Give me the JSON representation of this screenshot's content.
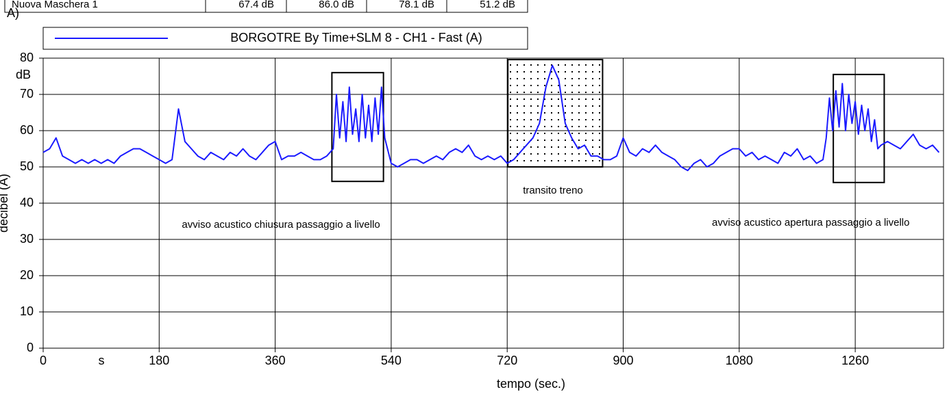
{
  "chart_data": {
    "type": "line",
    "panel_label": "A)",
    "table": {
      "rows": [
        [
          "Nuova Maschera 1",
          "67.4 dB",
          "86.0 dB",
          "78.1 dB",
          "51.2 dB"
        ]
      ]
    },
    "xlabel": "tempo (sec.)",
    "ylabel": "decibel (A)",
    "x_unit": "s",
    "y_unit": "dB",
    "xlim": [
      0,
      1397
    ],
    "ylim": [
      0,
      80
    ],
    "xticks": [
      0,
      180,
      360,
      540,
      720,
      900,
      1080,
      1260
    ],
    "yticks": [
      0,
      10,
      20,
      30,
      40,
      50,
      60,
      70,
      80
    ],
    "grid": true,
    "series": [
      {
        "name": "BORGOTRE By Time+SLM 8 - CH1 - Fast (A)",
        "color": "#1a1aff",
        "x": [
          0,
          10,
          20,
          30,
          40,
          50,
          60,
          70,
          80,
          90,
          100,
          110,
          120,
          130,
          140,
          150,
          160,
          170,
          180,
          190,
          200,
          210,
          220,
          230,
          240,
          250,
          260,
          270,
          280,
          290,
          300,
          310,
          320,
          330,
          340,
          350,
          360,
          370,
          380,
          390,
          400,
          410,
          420,
          430,
          440,
          450,
          455,
          460,
          465,
          470,
          475,
          480,
          485,
          490,
          495,
          500,
          505,
          510,
          515,
          520,
          525,
          530,
          540,
          550,
          560,
          570,
          580,
          590,
          600,
          610,
          620,
          630,
          640,
          650,
          660,
          670,
          680,
          690,
          700,
          710,
          720,
          730,
          740,
          750,
          760,
          770,
          780,
          790,
          800,
          810,
          820,
          830,
          840,
          850,
          860,
          870,
          880,
          890,
          900,
          910,
          920,
          930,
          940,
          950,
          960,
          970,
          980,
          990,
          1000,
          1010,
          1020,
          1030,
          1040,
          1050,
          1060,
          1070,
          1080,
          1090,
          1100,
          1110,
          1120,
          1130,
          1140,
          1150,
          1160,
          1170,
          1180,
          1190,
          1200,
          1210,
          1215,
          1220,
          1225,
          1230,
          1235,
          1240,
          1245,
          1250,
          1255,
          1260,
          1265,
          1270,
          1275,
          1280,
          1285,
          1290,
          1295,
          1300,
          1310,
          1320,
          1330,
          1340,
          1350,
          1360,
          1370,
          1380,
          1390
        ],
        "values": [
          54,
          55,
          58,
          53,
          52,
          51,
          52,
          51,
          52,
          51,
          52,
          51,
          53,
          54,
          55,
          55,
          54,
          53,
          52,
          51,
          52,
          66,
          57,
          55,
          53,
          52,
          54,
          53,
          52,
          54,
          53,
          55,
          53,
          52,
          54,
          56,
          57,
          52,
          53,
          53,
          54,
          53,
          52,
          52,
          53,
          55,
          70,
          58,
          68,
          57,
          72,
          59,
          66,
          57,
          70,
          58,
          67,
          57,
          69,
          59,
          72,
          58,
          51,
          50,
          51,
          52,
          52,
          51,
          52,
          53,
          52,
          54,
          55,
          54,
          56,
          53,
          52,
          53,
          52,
          53,
          51,
          52,
          54,
          56,
          58,
          62,
          72,
          78,
          74,
          62,
          58,
          55,
          56,
          53,
          53,
          52,
          52,
          53,
          58,
          54,
          53,
          55,
          54,
          56,
          54,
          53,
          52,
          50,
          49,
          51,
          52,
          50,
          51,
          53,
          54,
          55,
          55,
          53,
          54,
          52,
          53,
          52,
          51,
          54,
          53,
          55,
          52,
          53,
          51,
          52,
          58,
          69,
          60,
          71,
          61,
          73,
          60,
          70,
          62,
          68,
          59,
          67,
          60,
          66,
          57,
          63,
          55,
          56,
          57,
          56,
          55,
          57,
          59,
          56,
          55,
          56,
          54
        ]
      }
    ],
    "annotations": {
      "regions": [
        {
          "x0": 448,
          "x1": 528,
          "y0": 46,
          "y1": 76,
          "pattern": "none"
        },
        {
          "x0": 721,
          "x1": 868,
          "y0": 50,
          "y1": 79.6,
          "pattern": "dots"
        },
        {
          "x0": 1226,
          "x1": 1305,
          "y0": 45.7,
          "y1": 75.5,
          "pattern": "none"
        }
      ],
      "texts": [
        {
          "text": "transito treno",
          "x": 791,
          "y": 43.4
        },
        {
          "text": "avviso acustico chiusura passaggio a livello",
          "x": 369,
          "y": 34
        },
        {
          "text": "avviso acustico apertura passaggio a livello",
          "x": 1191,
          "y": 34.5
        }
      ]
    }
  }
}
